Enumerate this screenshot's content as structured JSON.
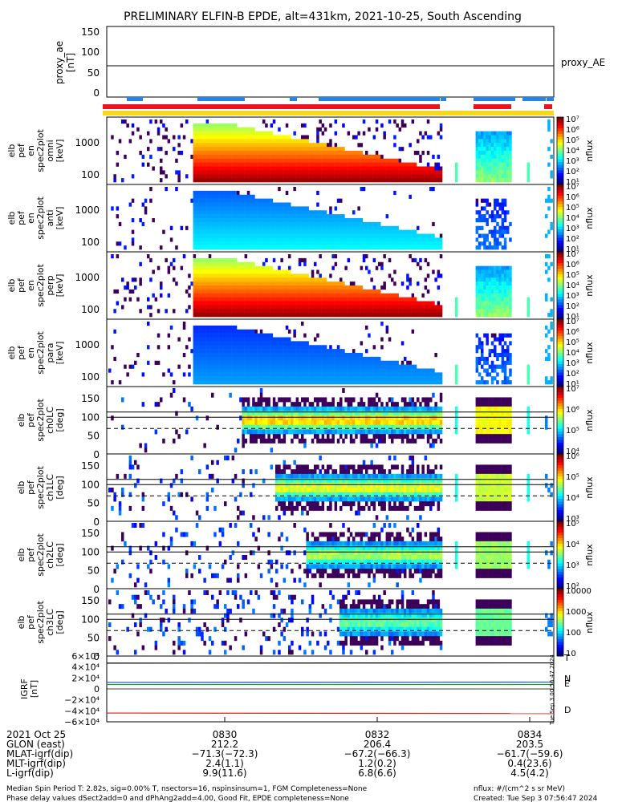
{
  "title": "PRELIMINARY ELFIN-B EPDE, alt=431km, 2021-10-25, South Ascending",
  "proxy_panel": {
    "ylabel": [
      "proxy_ae",
      "[nT]"
    ],
    "yticks": [
      "150",
      "100",
      "50",
      "0"
    ],
    "legend": "proxy_AE",
    "value": 65
  },
  "flux_panels": [
    {
      "id": "p1",
      "ylabel": [
        "elb",
        "pef",
        "en",
        "spec2plot",
        "omni",
        "[keV]"
      ],
      "yticks": [
        "1000",
        "100"
      ],
      "cbar": [
        "10⁷",
        "10⁶",
        "10⁵",
        "10⁴",
        "10³",
        "10²",
        "10¹"
      ],
      "clabel": "nflux"
    },
    {
      "id": "p2",
      "ylabel": [
        "elb",
        "pef",
        "en",
        "spec2plot",
        "anti",
        "[keV]"
      ],
      "yticks": [
        "1000",
        "100"
      ],
      "cbar": [
        "10⁷",
        "10⁶",
        "10⁵",
        "10⁴",
        "10³",
        "10²",
        "10¹"
      ],
      "clabel": "nflux"
    },
    {
      "id": "p3",
      "ylabel": [
        "elb",
        "pef",
        "en",
        "spec2plot",
        "perp",
        "[keV]"
      ],
      "yticks": [
        "1000",
        "100"
      ],
      "cbar": [
        "10⁷",
        "10⁶",
        "10⁵",
        "10⁴",
        "10³",
        "10²",
        "10¹"
      ],
      "clabel": "nflux"
    },
    {
      "id": "p4",
      "ylabel": [
        "elb",
        "pef",
        "en",
        "spec2plot",
        "para",
        "[keV]"
      ],
      "yticks": [
        "1000",
        "100"
      ],
      "cbar": [
        "10⁷",
        "10⁶",
        "10⁵",
        "10⁴",
        "10³",
        "10²",
        "10¹"
      ],
      "clabel": "nflux"
    }
  ],
  "pa_panels": [
    {
      "id": "p5",
      "ylabel": [
        "elb",
        "pef",
        "spec2plot",
        "ch0LC",
        "[deg]"
      ],
      "yticks": [
        "150",
        "100",
        "50",
        "0"
      ],
      "cbar": [
        "10⁷",
        "10⁶",
        "10⁵",
        "10⁴"
      ],
      "clabel": "nflux"
    },
    {
      "id": "p6",
      "ylabel": [
        "elb",
        "pef",
        "spec2plot",
        "ch1LC",
        "[deg]"
      ],
      "yticks": [
        "150",
        "100",
        "50",
        "0"
      ],
      "cbar": [
        "10⁶",
        "10⁵",
        "10⁴",
        "10³"
      ],
      "clabel": "nflux"
    },
    {
      "id": "p7",
      "ylabel": [
        "elb",
        "pef",
        "spec2plot",
        "ch2LC",
        "[deg]"
      ],
      "yticks": [
        "150",
        "100",
        "50",
        "0"
      ],
      "cbar": [
        "10⁵",
        "10⁴",
        "10³",
        "10²"
      ],
      "clabel": "nflux"
    },
    {
      "id": "p8",
      "ylabel": [
        "elb",
        "pef",
        "spec2plot",
        "ch3LC",
        "[deg]"
      ],
      "yticks": [
        "150",
        "100",
        "50",
        "0"
      ],
      "cbar": [
        "10000",
        "1000",
        "100",
        "10"
      ],
      "clabel": "nflux"
    }
  ],
  "igrf_panel": {
    "ylabel": [
      "IGRF",
      "[nT]"
    ],
    "yticks": [
      "6×10⁴",
      "4×10⁴",
      "2×10⁴",
      "0",
      "−2×10⁴",
      "−4×10⁴",
      "−6×10⁴"
    ],
    "legend": [
      {
        "label": "T",
        "color": "#000000"
      },
      {
        "label": "N",
        "color": "#2050d8"
      },
      {
        "label": "E",
        "color": "#20a020"
      },
      {
        "label": "D",
        "color": "#e02020"
      }
    ],
    "side_note": "Tue Sep 3 00:56:47 2024"
  },
  "footer": {
    "row_labels": [
      "2021 Oct 25",
      "GLON (east)",
      "MLAT-igrf(dip)",
      "MLT-igrf(dip)",
      "L-igrf(dip)"
    ],
    "columns": [
      {
        "time": "0830",
        "glon": "212.2",
        "mlat": "−71.3(−72.3)",
        "mlt": "2.4(1.1)",
        "l": "9.9(11.6)"
      },
      {
        "time": "0832",
        "glon": "206.4",
        "mlat": "−67.2(−66.3)",
        "mlt": "1.2(0.2)",
        "l": "6.8(6.6)"
      },
      {
        "time": "0834",
        "glon": "203.5",
        "mlat": "−61.7(−59.6)",
        "mlt": "0.4(23.6)",
        "l": "4.5(4.2)"
      }
    ],
    "note1": "Median Spin Period T: 2.82s, sig=0.00% T, nsectors=16, nspinsinsum=1, FGM Completeness=None",
    "note2": "Phase delay values dSect2add=0 and dPhAng2add=4.00, Good Fit, EPDE completeness=None",
    "note3": "nflux: #/(cm^2 s sr MeV)",
    "note4": "Created: Tue Sep  3 07:56:47 2024"
  },
  "chart_data": {
    "type": "heatmap",
    "title": "PRELIMINARY ELFIN-B EPDE, alt=431km, 2021-10-25, South Ascending",
    "x_axis": {
      "ticks": [
        "0830",
        "0832",
        "0834"
      ]
    },
    "proxy_ae": {
      "ylim": [
        0,
        150
      ],
      "value": 65
    },
    "energy_panels": {
      "ylabel_unit": "keV",
      "scale": "log",
      "ylim": [
        60,
        7000
      ]
    },
    "pitch_angle_panels": {
      "ylabel_unit": "deg",
      "ylim": [
        0,
        180
      ],
      "reference_lines": [
        112,
        98,
        68
      ]
    },
    "igrf": {
      "ylim": [
        -60000,
        60000
      ],
      "series": [
        {
          "name": "T",
          "values": [
            47000,
            47500
          ]
        },
        {
          "name": "N",
          "values": [
            12000,
            12500
          ]
        },
        {
          "name": "E",
          "values": [
            8000,
            8000
          ]
        },
        {
          "name": "D",
          "values": [
            -44000,
            -45000
          ]
        }
      ]
    },
    "colors": {
      "red": "#e8141a",
      "blue": "#2484e8",
      "yellow": "#f8d818"
    }
  }
}
